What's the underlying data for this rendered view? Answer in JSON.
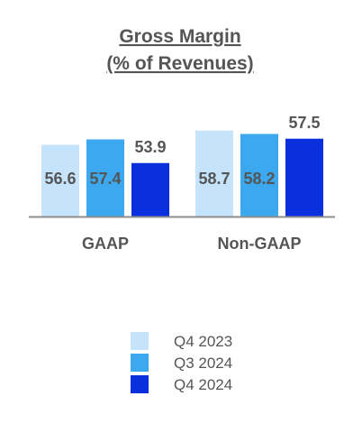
{
  "chart_data": {
    "type": "bar",
    "title": "Gross Margin",
    "subtitle": "(% of Revenues)",
    "categories": [
      "GAAP",
      "Non-GAAP"
    ],
    "series": [
      {
        "name": "Q4 2023",
        "values": [
          56.6,
          58.7
        ],
        "color": "#c5e4fb"
      },
      {
        "name": "Q3 2024",
        "values": [
          57.4,
          58.2
        ],
        "color": "#3ca8f0"
      },
      {
        "name": "Q4 2024",
        "values": [
          53.9,
          57.5
        ],
        "color": "#0a2fdc"
      }
    ],
    "ylim": [
      46,
      60
    ],
    "grid": false,
    "legend": "bottom"
  }
}
